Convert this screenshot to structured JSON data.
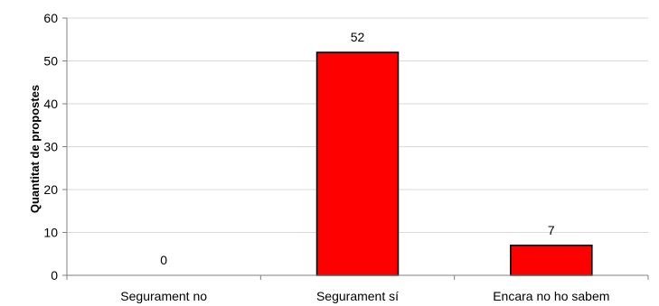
{
  "chart_data": {
    "type": "bar",
    "title": "",
    "xlabel": "",
    "ylabel": "Quantitat de propostes",
    "categories": [
      "Segurament no",
      "Segurament sí",
      "Encara no ho sabem"
    ],
    "values": [
      0,
      52,
      7
    ],
    "data_labels": [
      "0",
      "52",
      "7"
    ],
    "ylim": [
      0,
      60
    ],
    "yticks": [
      0,
      10,
      20,
      30,
      40,
      50,
      60
    ],
    "ytick_labels": [
      "0",
      "10",
      "20",
      "30",
      "40",
      "50",
      "60"
    ],
    "grid": true,
    "legend": "none",
    "bar_color": "#ff0000",
    "bar_edge_color": "#000000",
    "grid_color": "#d9d9d9",
    "axis_color": "#808080"
  }
}
